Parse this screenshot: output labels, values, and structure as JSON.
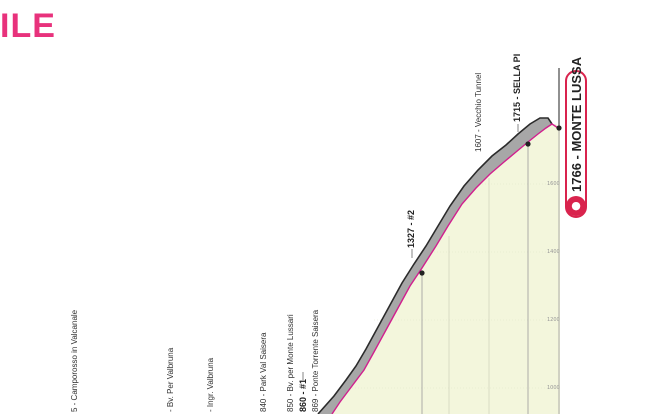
{
  "header": {
    "title": "ILE"
  },
  "waypoints": [
    {
      "label": "5 - Camporosso in Valcanale",
      "bold": false
    },
    {
      "label": "- Bv. Per Valbruna",
      "bold": false
    },
    {
      "label": "- Ingr. Valbruna",
      "bold": false
    },
    {
      "label": "840 - Park Val Saisera",
      "bold": false
    },
    {
      "label": "850 - Bv. per Monte Lussari",
      "bold": false
    },
    {
      "label": "860 - #1",
      "bold": true
    },
    {
      "label": "869 - Ponte Torrente Saisera",
      "bold": false
    },
    {
      "label": "1327 - #2",
      "bold": true
    },
    {
      "label": "1607 - Vecchio Tunnel",
      "bold": false
    },
    {
      "label": "1715 - SELLA PI",
      "bold": true
    }
  ],
  "summit": {
    "label": "1766 - MONTE LUSSA",
    "icon": "cyclist-icon"
  },
  "altitude_ticks": [
    "1600",
    "1400",
    "1200",
    "1000"
  ],
  "colors": {
    "accent": "#e8327c",
    "summit_red": "#d9234d",
    "fill": "#f3f6dc",
    "road": "#a7a7a7",
    "road_edge": "#d11f8e"
  }
}
